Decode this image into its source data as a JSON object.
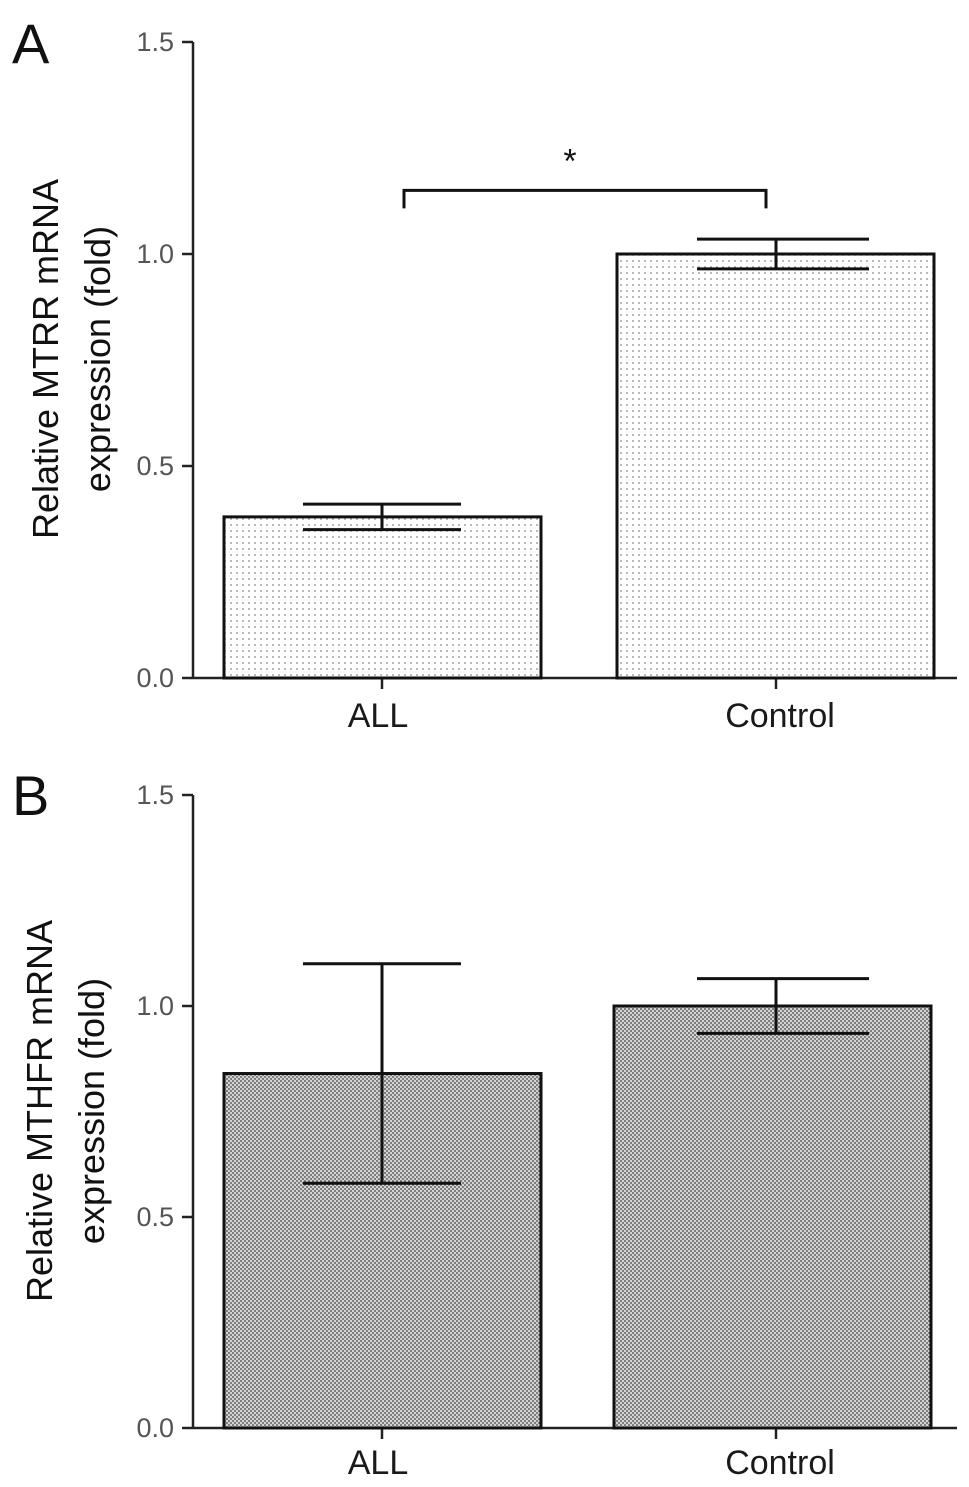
{
  "chart_data": [
    {
      "type": "bar",
      "panel": "A",
      "ylabel_lines": [
        "Relative MTRR mRNA",
        "expression (fold)"
      ],
      "categories": [
        "ALL",
        "Control"
      ],
      "values": [
        0.38,
        1.0
      ],
      "errors": [
        0.03,
        0.035
      ],
      "ylim": [
        0,
        1.5
      ],
      "yticks": [
        0.0,
        0.5,
        1.0,
        1.5
      ],
      "ytick_labels": [
        "0.0",
        "0.5",
        "1.0",
        "1.5"
      ],
      "significance": {
        "between": [
          "ALL",
          "Control"
        ],
        "label": "*",
        "level": 1.15
      },
      "pattern": "light-dots",
      "grid": false
    },
    {
      "type": "bar",
      "panel": "B",
      "ylabel_lines": [
        "Relative MTHFR mRNA",
        "expression (fold)"
      ],
      "categories": [
        "ALL",
        "Control"
      ],
      "values": [
        0.84,
        1.0
      ],
      "errors": [
        0.26,
        0.065
      ],
      "ylim": [
        0,
        1.5
      ],
      "yticks": [
        0.0,
        0.5,
        1.0,
        1.5
      ],
      "ytick_labels": [
        "0.0",
        "0.5",
        "1.0",
        "1.5"
      ],
      "pattern": "dense-dots",
      "grid": false
    }
  ]
}
